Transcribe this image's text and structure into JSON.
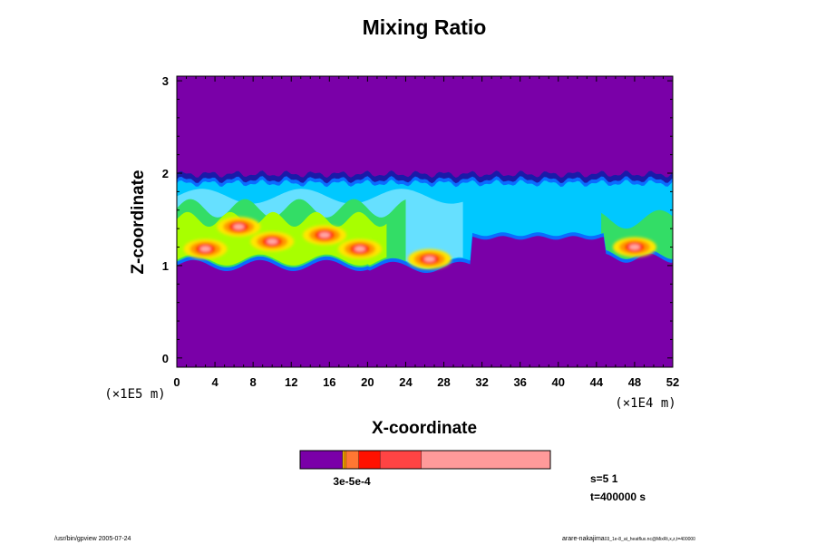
{
  "chart_data": {
    "type": "heatmap",
    "title": "Mixing Ratio",
    "xlabel": "X-coordinate",
    "ylabel": "Z-coordinate",
    "x_scale_note": "(×1E4 m)",
    "y_scale_note": "(×1E5 m)",
    "x_range": [
      0,
      52
    ],
    "y_range": [
      -0.1,
      3.05
    ],
    "x_ticks": [
      "0",
      "4",
      "8",
      "12",
      "16",
      "20",
      "24",
      "28",
      "32",
      "36",
      "40",
      "44",
      "48",
      "52"
    ],
    "y_ticks": [
      "0",
      "1",
      "2",
      "3"
    ],
    "background_color": "#7a00a8",
    "cloud_layer": {
      "description_levels": [
        "#1a1aa8",
        "#0a6cff",
        "#00c8ff",
        "#66e0ff",
        "#33dd66",
        "#a8ff00",
        "#ffe600",
        "#ff9900",
        "#ff3300",
        "#ff5555",
        "#ffaaaa"
      ],
      "top_z": 1.97,
      "base_z_left": 1.0,
      "base_z_right": 1.3,
      "hotspots": [
        {
          "x": 3.0,
          "z": 1.18
        },
        {
          "x": 6.5,
          "z": 1.42
        },
        {
          "x": 10.0,
          "z": 1.26
        },
        {
          "x": 15.5,
          "z": 1.33
        },
        {
          "x": 19.2,
          "z": 1.18
        },
        {
          "x": 26.5,
          "z": 1.07
        },
        {
          "x": 48.0,
          "z": 1.2
        }
      ]
    },
    "colorbar": {
      "colors": [
        "#7a00a8",
        "#ffcc00",
        "#ff9900",
        "#ff7733",
        "#ff1100",
        "#ff4444",
        "#ff9a9a"
      ],
      "fractions": [
        0.17,
        0.005,
        0.01,
        0.05,
        0.085,
        0.165,
        0.515
      ],
      "label": "3e-5e-4"
    },
    "params": [
      "s=5 1",
      "t=400000 s"
    ]
  },
  "footer": {
    "left": "/usr/bin/gpview 2005-07-24",
    "right_main": "arare-nakajima",
    "right_small": "03_1e-8_at_heatflux.nc@MixRt,x,z,t=400000"
  }
}
